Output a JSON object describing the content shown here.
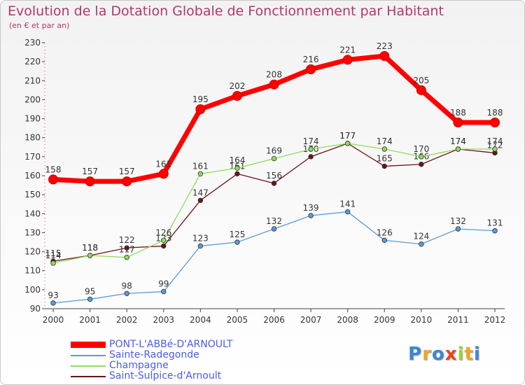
{
  "chart_data": {
    "type": "line",
    "title": "Evolution de la Dotation Globale de Fonctionnement par Habitant",
    "subtitle": "(en € et par an)",
    "xlabel": "",
    "ylabel": "",
    "ylim": [
      90,
      230
    ],
    "yticks": [
      90,
      100,
      110,
      120,
      130,
      140,
      150,
      160,
      170,
      180,
      190,
      200,
      210,
      220,
      230
    ],
    "categories": [
      "2000",
      "2001",
      "2002",
      "2003",
      "2004",
      "2005",
      "2006",
      "2007",
      "2008",
      "2009",
      "2010",
      "2011",
      "2012"
    ],
    "legend_position": "bottom-left",
    "grid": false,
    "series": [
      {
        "name": "Saint-Sulpice-d'Arnoult",
        "color": "#6b1414",
        "values": [
          115,
          118,
          122,
          123,
          147,
          161,
          156,
          170,
          177,
          165,
          166,
          174,
          172
        ],
        "labels": [
          "115",
          "118",
          "122",
          "123",
          "147",
          "161",
          "156",
          "170",
          "177",
          "165",
          "166",
          "174",
          "172"
        ]
      },
      {
        "name": "Champagne",
        "color": "#8fdc5a",
        "values": [
          114,
          118,
          117,
          126,
          161,
          164,
          169,
          174,
          177,
          174,
          170,
          174,
          174
        ],
        "labels": [
          "114",
          "118",
          "117",
          "126",
          "161",
          "164",
          "169",
          "174",
          "177",
          "174",
          "170",
          "174",
          "174"
        ]
      },
      {
        "name": "Sainte-Radegonde",
        "color": "#5b9bd5",
        "values": [
          93,
          95,
          98,
          99,
          123,
          125,
          132,
          139,
          141,
          126,
          124,
          132,
          131
        ],
        "labels": [
          "93",
          "95",
          "98",
          "99",
          "123",
          "125",
          "132",
          "139",
          "141",
          "126",
          "124",
          "132",
          "131"
        ]
      },
      {
        "name": "PONT-L'ABBé-D'ARNOULT",
        "color": "#ff0000",
        "values": [
          158,
          157,
          157,
          161,
          195,
          202,
          208,
          216,
          221,
          223,
          205,
          188,
          188
        ],
        "labels": [
          "158",
          "157",
          "157",
          "161",
          "195",
          "202",
          "208",
          "216",
          "221",
          "223",
          "205",
          "188",
          "188"
        ]
      }
    ]
  },
  "legend": {
    "items": [
      {
        "label": "PONT-L'ABBé-D'ARNOULT",
        "color": "#ff0000"
      },
      {
        "label": "Sainte-Radegonde",
        "color": "#5b9bd5"
      },
      {
        "label": "Champagne",
        "color": "#8fdc5a"
      },
      {
        "label": "Saint-Sulpice-d'Arnoult",
        "color": "#6b1414"
      }
    ]
  },
  "logo": {
    "letters": [
      "P",
      "r",
      "o",
      "x",
      "i",
      "t",
      "i"
    ],
    "colors": [
      "#3a87d6",
      "#f2a51a",
      "#3a87d6",
      "#e8471c",
      "#9ad23a",
      "#f2a51a",
      "#3a87d6"
    ]
  }
}
